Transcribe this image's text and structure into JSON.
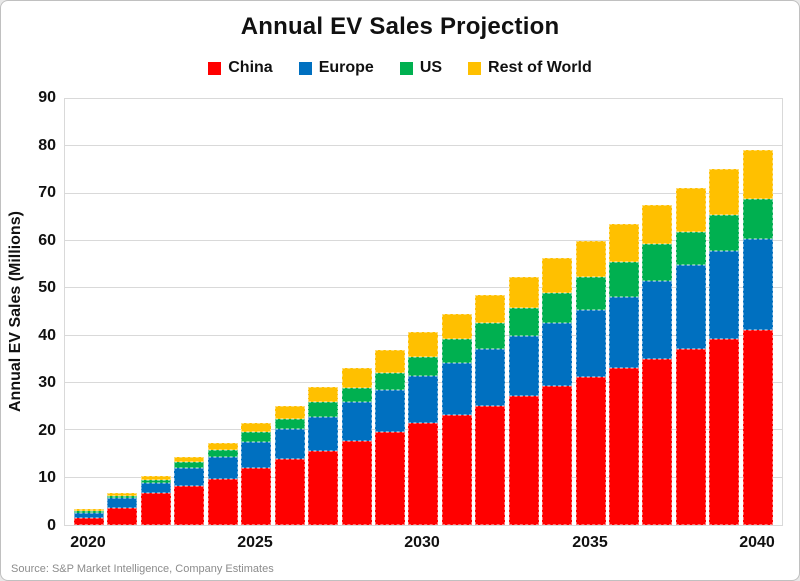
{
  "page": {
    "source_note": "Source: S&P Market Intelligence, Company Estimates"
  },
  "chart_data": {
    "type": "bar",
    "stacked": true,
    "title": "Annual EV Sales Projection",
    "xlabel": "",
    "ylabel": "Annual EV Sales (Millions)",
    "ylim": [
      0,
      90
    ],
    "y_tick_step": 10,
    "y_tick_labels": [
      "0",
      "10",
      "20",
      "30",
      "40",
      "50",
      "60",
      "70",
      "80",
      "90"
    ],
    "grid": true,
    "legend_position": "top",
    "categories": [
      "2020",
      "2021",
      "2022",
      "2023",
      "2024",
      "2025",
      "2026",
      "2027",
      "2028",
      "2029",
      "2030",
      "2031",
      "2032",
      "2033",
      "2034",
      "2035",
      "2036",
      "2037",
      "2038",
      "2039",
      "2040"
    ],
    "x_tick_labels": [
      {
        "index": 0,
        "label": "2020"
      },
      {
        "index": 5,
        "label": "2025"
      },
      {
        "index": 10,
        "label": "2030"
      },
      {
        "index": 15,
        "label": "2035"
      },
      {
        "index": 20,
        "label": "2040"
      }
    ],
    "series": [
      {
        "name": "China",
        "color": "#FF0000",
        "values": [
          1.5,
          3.5,
          6.8,
          8.2,
          9.7,
          12.0,
          13.9,
          15.7,
          17.7,
          19.6,
          21.5,
          23.3,
          25.2,
          27.2,
          29.3,
          31.2,
          33.1,
          35.0,
          37.2,
          39.2,
          41.3
        ]
      },
      {
        "name": "Europe",
        "color": "#0070C0",
        "values": [
          1.0,
          2.2,
          2.0,
          3.8,
          4.7,
          5.5,
          6.4,
          7.1,
          8.2,
          9.0,
          10.0,
          10.9,
          12.0,
          12.7,
          13.4,
          14.2,
          15.1,
          16.6,
          17.8,
          18.6,
          19.2
        ]
      },
      {
        "name": "US",
        "color": "#00B050",
        "values": [
          0.4,
          0.5,
          0.7,
          1.3,
          1.4,
          2.1,
          2.1,
          3.1,
          3.1,
          3.6,
          3.9,
          5.2,
          5.5,
          5.9,
          6.4,
          7.1,
          7.4,
          7.7,
          7.0,
          7.6,
          8.4
        ]
      },
      {
        "name": "Rest of World",
        "color": "#FFC000",
        "values": [
          0.4,
          0.6,
          0.9,
          1.0,
          1.5,
          2.0,
          2.8,
          3.3,
          4.2,
          4.7,
          5.3,
          5.2,
          6.0,
          6.6,
          7.3,
          7.5,
          8.1,
          8.3,
          9.2,
          9.8,
          10.4
        ]
      }
    ]
  }
}
